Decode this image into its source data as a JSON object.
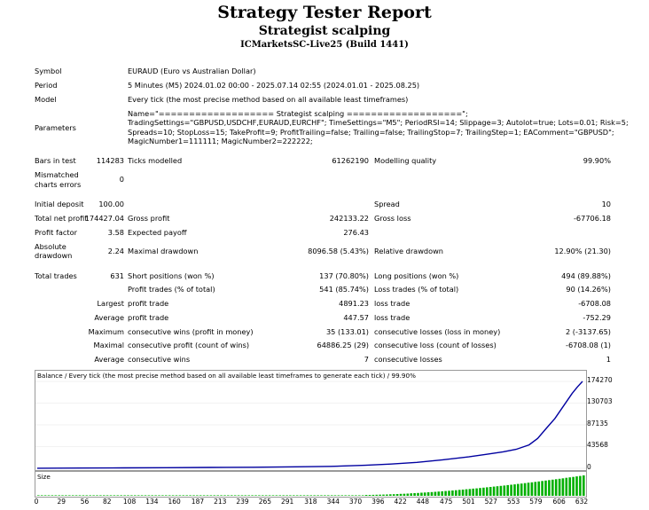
{
  "header": {
    "title": "Strategy Tester Report",
    "subtitle": "Strategist scalping",
    "server": "ICMarketsSC-Live25 (Build 1441)"
  },
  "settings": {
    "symbol_label": "Symbol",
    "symbol_value": "EURAUD (Euro vs Australian Dollar)",
    "period_label": "Period",
    "period_value": "5 Minutes (M5) 2024.01.02 00:00 - 2025.07.14 02:55 (2024.01.01 - 2025.08.25)",
    "model_label": "Model",
    "model_value": "Every tick (the most precise method based on all available least timeframes)",
    "parameters_label": "Parameters",
    "parameters_lines": [
      "Name=\"=================== Strategist scalping ===================\";",
      "TradingSettings=\"GBPUSD,USDCHF,EURAUD,EURCHF\"; TimeSettings=\"M5\"; PeriodRSI=14; Slippage=3; Autolot=true; Lots=0.01; Risk=5;",
      "Spreads=10; StopLoss=15; TakeProfit=9; ProfitTrailing=false; Trailing=false; TrailingStop=7; TrailingStep=1; EAComment=\"GBPUSD\";",
      "MagicNumber1=111111; MagicNumber2=222222;"
    ]
  },
  "stats": {
    "bars_label": "Bars in test",
    "bars_value": "114283",
    "ticks_label": "Ticks modelled",
    "ticks_value": "61262190",
    "quality_label": "Modelling quality",
    "quality_value": "99.90%",
    "mismatch_label_1": "Mismatched",
    "mismatch_label_2": "charts errors",
    "mismatch_value": "0",
    "deposit_label": "Initial deposit",
    "deposit_value": "100.00",
    "spread_label": "Spread",
    "spread_value": "10",
    "net_label": "Total net profit",
    "net_value": "174427.04",
    "gross_profit_label": "Gross profit",
    "gross_profit_value": "242133.22",
    "gross_loss_label": "Gross loss",
    "gross_loss_value": "-67706.18",
    "pf_label": "Profit factor",
    "pf_value": "3.58",
    "payoff_label": "Expected payoff",
    "payoff_value": "276.43",
    "abs_dd_label_1": "Absolute",
    "abs_dd_label_2": "drawdown",
    "abs_dd_value": "2.24",
    "max_dd_label": "Maximal drawdown",
    "max_dd_value": "8096.58 (5.43%)",
    "rel_dd_label": "Relative drawdown",
    "rel_dd_value": "12.90% (21.30)",
    "trades_label": "Total trades",
    "trades_value": "631",
    "short_label": "Short positions (won %)",
    "short_value": "137 (70.80%)",
    "long_label": "Long positions (won %)",
    "long_value": "494 (89.88%)",
    "profit_trades_label": "Profit trades (% of total)",
    "profit_trades_value": "541 (85.74%)",
    "loss_trades_label": "Loss trades (% of total)",
    "loss_trades_value": "90 (14.26%)",
    "largest_label": "Largest",
    "largest_profit_label": "profit trade",
    "largest_profit_value": "4891.23",
    "largest_loss_label": "loss trade",
    "largest_loss_value": "-6708.08",
    "average_label": "Average",
    "avg_profit_label": "profit trade",
    "avg_profit_value": "447.57",
    "avg_loss_label": "loss trade",
    "avg_loss_value": "-752.29",
    "maximum_label": "Maximum",
    "max_cw_label": "consecutive wins (profit in money)",
    "max_cw_value": "35 (133.01)",
    "max_cl_label": "consecutive losses (loss in money)",
    "max_cl_value": "2 (-3137.65)",
    "maximal_label": "Maximal",
    "maximal_cp_label": "consecutive profit (count of wins)",
    "maximal_cp_value": "64886.25 (29)",
    "maximal_cl_label": "consecutive loss (count of losses)",
    "maximal_cl_value": "-6708.08 (1)",
    "average2_label": "Average",
    "avg_cw_label": "consecutive wins",
    "avg_cw_value": "7",
    "avg_closs_label": "consecutive losses",
    "avg_closs_value": "1"
  },
  "chart_data": {
    "type": "line",
    "title": "Balance / Every tick (the most precise method based on all available least timeframes to generate each tick)  /  99.90%",
    "size_label": "Size",
    "line_color": "#0000a0",
    "size_bar_color": "#00b000",
    "ylim": [
      0,
      174270
    ],
    "y_ticks": [
      "174270",
      "130703",
      "87135",
      "43568",
      "0"
    ],
    "y_tick_values": [
      174270,
      130703,
      87135,
      43568,
      0
    ],
    "xlim": [
      0,
      632
    ],
    "x_ticks": [
      "0",
      "29",
      "56",
      "82",
      "108",
      "134",
      "160",
      "187",
      "213",
      "239",
      "265",
      "291",
      "318",
      "344",
      "370",
      "396",
      "422",
      "448",
      "475",
      "501",
      "527",
      "553",
      "579",
      "606",
      "632"
    ],
    "x": [
      0,
      50,
      100,
      150,
      200,
      250,
      300,
      340,
      380,
      410,
      440,
      470,
      500,
      520,
      540,
      555,
      570,
      580,
      590,
      600,
      610,
      620,
      626,
      632
    ],
    "y": [
      100,
      500,
      900,
      1300,
      1700,
      2200,
      3000,
      4000,
      6000,
      8500,
      12000,
      17000,
      23000,
      28000,
      33000,
      38000,
      47000,
      60000,
      80000,
      100000,
      125000,
      150000,
      163000,
      174270
    ]
  }
}
